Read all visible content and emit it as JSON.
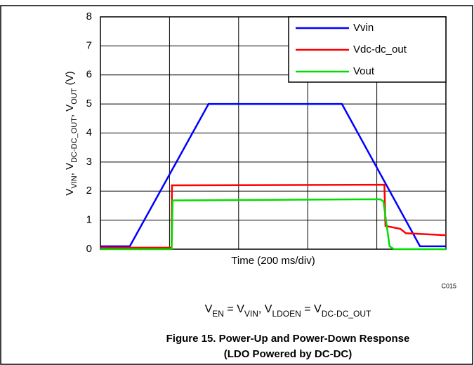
{
  "chart_data": {
    "type": "line",
    "ylabel_parts": [
      "V",
      "VIN",
      ", V",
      "DC-DC_OUT",
      ", V",
      "OUT",
      " (V)"
    ],
    "xlabel": "Time (200 ms/div)",
    "note": "C015",
    "condition_parts": [
      "V",
      "EN",
      " = V",
      "VIN",
      ", V",
      "LDOEN",
      " = V",
      "DC-DC_OUT"
    ],
    "caption": [
      "Figure 15. Power-Up and Power-Down Response",
      "(LDO Powered by DC-DC)"
    ],
    "xlim": [
      0,
      1000
    ],
    "xticks": [
      0,
      200,
      400,
      600,
      800,
      1000
    ],
    "ylim": [
      0,
      8
    ],
    "yticks": [
      0,
      1,
      2,
      3,
      4,
      5,
      6,
      7,
      8
    ],
    "grid": true,
    "legend": "upper right",
    "series": [
      {
        "name": "Vvin",
        "color": "#0000ff",
        "x": [
          0,
          85,
          313,
          699,
          925,
          1000
        ],
        "values": [
          0.1,
          0.1,
          5,
          5,
          0.1,
          0.1
        ]
      },
      {
        "name": "Vdc-dc_out",
        "color": "#ff0000",
        "x": [
          0,
          206,
          207,
          822,
          825,
          868,
          884,
          1000
        ],
        "values": [
          0.05,
          0.05,
          2.2,
          2.22,
          0.8,
          0.7,
          0.55,
          0.48
        ]
      },
      {
        "name": "Vout",
        "color": "#00dd00",
        "x": [
          0,
          206,
          209,
          810,
          819,
          837,
          850,
          1000
        ],
        "values": [
          0,
          0,
          1.68,
          1.72,
          1.65,
          0.1,
          0,
          0
        ]
      }
    ]
  }
}
